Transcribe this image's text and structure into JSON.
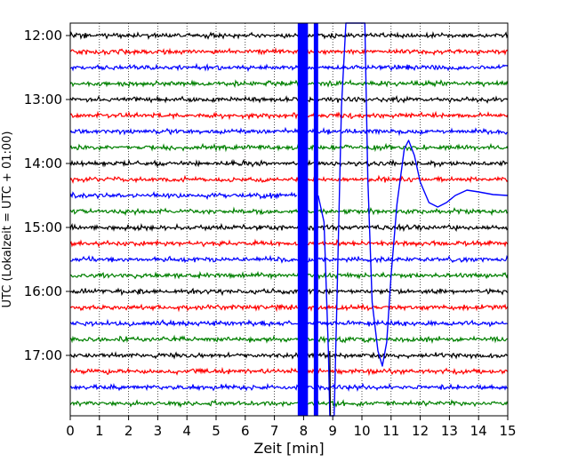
{
  "chart_data": {
    "type": "line",
    "title": "",
    "xlabel": "Zeit  [min]",
    "ylabel": "UTC (Lokalzeit = UTC + 01:00)",
    "xlim": [
      0,
      15
    ],
    "x_ticks": [
      "0",
      "1",
      "2",
      "3",
      "4",
      "5",
      "6",
      "7",
      "8",
      "9",
      "10",
      "11",
      "12",
      "13",
      "14",
      "15"
    ],
    "y_ticks": [
      "12:00",
      "13:00",
      "14:00",
      "15:00",
      "16:00",
      "17:00"
    ],
    "grid": "vertical dotted",
    "trace_count": 24,
    "trace_color_cycle": [
      "#000000",
      "#ff0000",
      "#0000ff",
      "#008000"
    ],
    "event_trace_index": 10,
    "event": {
      "start_min": 7.8,
      "saturated_band_min": [
        7.8,
        8.5
      ],
      "secondary_peak_min": 11.6,
      "trough_min": 12.6
    }
  }
}
